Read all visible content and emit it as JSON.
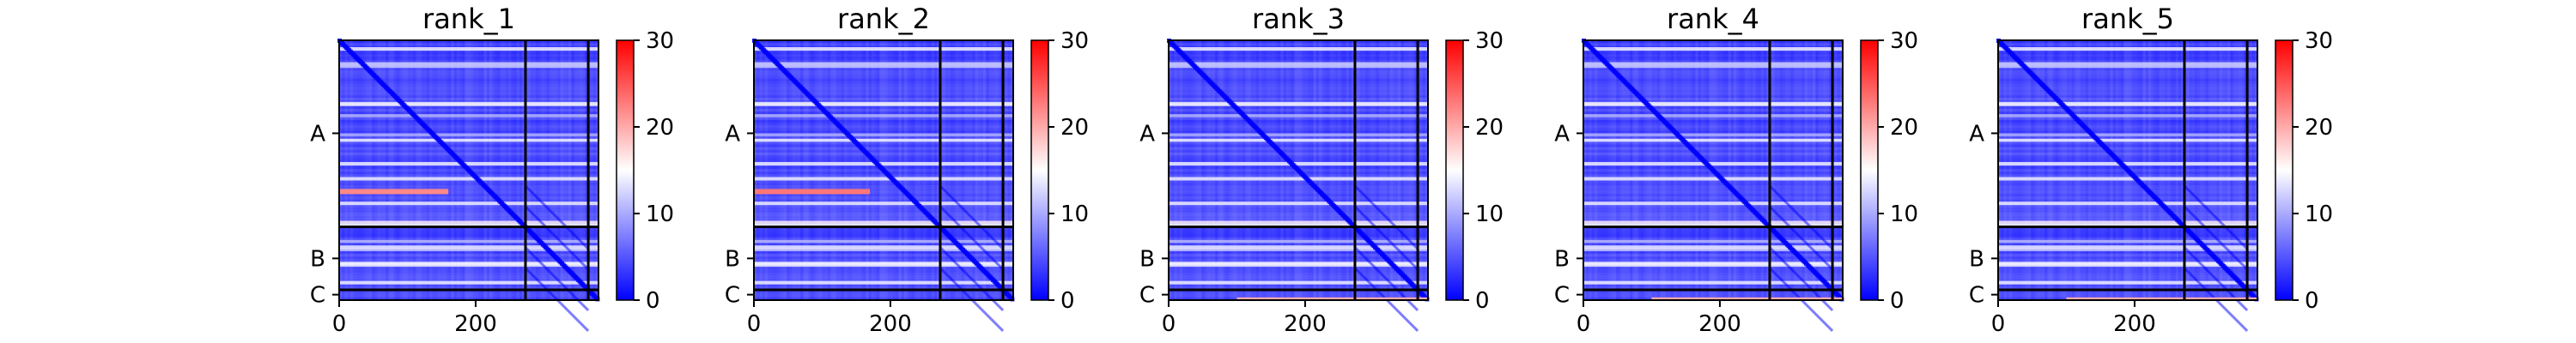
{
  "chart_data": [
    {
      "type": "heatmap",
      "title": "rank_1",
      "x_tick_labels": [
        "0",
        "200"
      ],
      "x_tick_values": [
        0,
        200
      ],
      "y_tick_labels": [
        "A",
        "B",
        "C"
      ],
      "colorbar": {
        "ticks": [
          "0",
          "10",
          "20",
          "30"
        ],
        "tick_values": [
          0,
          10,
          20,
          30
        ],
        "range": [
          0,
          30
        ],
        "colormap": "bwr"
      },
      "n_residues": 380,
      "chain_boundaries": [
        273,
        365
      ],
      "chain_centers": [
        136,
        319,
        372
      ],
      "bright_rows": [
        {
          "row": 220,
          "value": 22,
          "x_range": [
            0,
            160
          ]
        }
      ],
      "bottom_row_bright": false
    },
    {
      "type": "heatmap",
      "title": "rank_2",
      "x_tick_labels": [
        "0",
        "200"
      ],
      "x_tick_values": [
        0,
        200
      ],
      "y_tick_labels": [
        "A",
        "B",
        "C"
      ],
      "colorbar": {
        "ticks": [
          "0",
          "10",
          "20",
          "30"
        ],
        "tick_values": [
          0,
          10,
          20,
          30
        ],
        "range": [
          0,
          30
        ],
        "colormap": "bwr"
      },
      "n_residues": 380,
      "chain_boundaries": [
        273,
        365
      ],
      "chain_centers": [
        136,
        319,
        372
      ],
      "bright_rows": [
        {
          "row": 220,
          "value": 23,
          "x_range": [
            0,
            170
          ]
        }
      ],
      "bottom_row_bright": false
    },
    {
      "type": "heatmap",
      "title": "rank_3",
      "x_tick_labels": [
        "0",
        "200"
      ],
      "x_tick_values": [
        0,
        200
      ],
      "y_tick_labels": [
        "A",
        "B",
        "C"
      ],
      "colorbar": {
        "ticks": [
          "0",
          "10",
          "20",
          "30"
        ],
        "tick_values": [
          0,
          10,
          20,
          30
        ],
        "range": [
          0,
          30
        ],
        "colormap": "bwr"
      },
      "n_residues": 380,
      "chain_boundaries": [
        273,
        365
      ],
      "chain_centers": [
        136,
        319,
        372
      ],
      "bright_rows": [],
      "bottom_row_bright": true
    },
    {
      "type": "heatmap",
      "title": "rank_4",
      "x_tick_labels": [
        "0",
        "200"
      ],
      "x_tick_values": [
        0,
        200
      ],
      "y_tick_labels": [
        "A",
        "B",
        "C"
      ],
      "colorbar": {
        "ticks": [
          "0",
          "10",
          "20",
          "30"
        ],
        "tick_values": [
          0,
          10,
          20,
          30
        ],
        "range": [
          0,
          30
        ],
        "colormap": "bwr"
      },
      "n_residues": 380,
      "chain_boundaries": [
        273,
        365
      ],
      "chain_centers": [
        136,
        319,
        372
      ],
      "bright_rows": [],
      "bottom_row_bright": true
    },
    {
      "type": "heatmap",
      "title": "rank_5",
      "x_tick_labels": [
        "0",
        "200"
      ],
      "x_tick_values": [
        0,
        200
      ],
      "y_tick_labels": [
        "A",
        "B",
        "C"
      ],
      "colorbar": {
        "ticks": [
          "0",
          "10",
          "20",
          "30"
        ],
        "tick_values": [
          0,
          10,
          20,
          30
        ],
        "range": [
          0,
          30
        ],
        "colormap": "bwr"
      },
      "n_residues": 380,
      "chain_boundaries": [
        273,
        365
      ],
      "chain_centers": [
        136,
        319,
        372
      ],
      "bright_rows": [],
      "bottom_row_bright": true
    }
  ]
}
